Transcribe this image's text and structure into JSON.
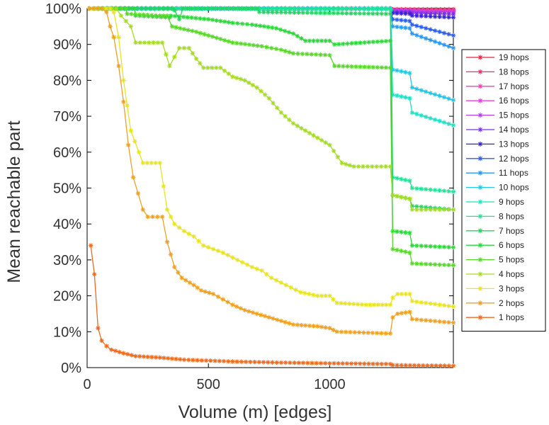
{
  "chart_data": {
    "type": "line",
    "title": "",
    "xlabel": "Volume (m) [edges]",
    "ylabel": "Mean reachable part",
    "xlim": [
      0,
      1510
    ],
    "ylim": [
      0,
      100
    ],
    "xticks": [
      0,
      500,
      1000
    ],
    "yticks": [
      0,
      10,
      20,
      30,
      40,
      50,
      60,
      70,
      80,
      90,
      100
    ],
    "xtick_labels": [
      "0",
      "500",
      "1000"
    ],
    "ytick_labels": [
      "0%",
      "10%",
      "20%",
      "30%",
      "40%",
      "50%",
      "60%",
      "70%",
      "80%",
      "90%",
      "100%"
    ],
    "legend_position": "right",
    "marker": "asterisk",
    "series": [
      {
        "name": "19 hops",
        "color": "#e8203c",
        "points": [
          [
            10,
            100
          ],
          [
            1250,
            100
          ],
          [
            1260,
            99.8
          ],
          [
            1510,
            99.8
          ]
        ]
      },
      {
        "name": "18 hops",
        "color": "#ee2e6a",
        "points": [
          [
            10,
            100
          ],
          [
            1250,
            100
          ],
          [
            1260,
            99.7
          ],
          [
            1510,
            99.6
          ]
        ]
      },
      {
        "name": "17 hops",
        "color": "#f041b4",
        "points": [
          [
            10,
            100
          ],
          [
            1250,
            100
          ],
          [
            1260,
            99.6
          ],
          [
            1510,
            99.4
          ]
        ]
      },
      {
        "name": "16 hops",
        "color": "#e43ee0",
        "points": [
          [
            10,
            100
          ],
          [
            1250,
            100
          ],
          [
            1260,
            99.5
          ],
          [
            1510,
            99.2
          ]
        ]
      },
      {
        "name": "15 hops",
        "color": "#b33ee6",
        "points": [
          [
            10,
            100
          ],
          [
            1250,
            100
          ],
          [
            1260,
            99.3
          ],
          [
            1510,
            99
          ]
        ]
      },
      {
        "name": "14 hops",
        "color": "#7a2ee6",
        "points": [
          [
            10,
            100
          ],
          [
            1250,
            100
          ],
          [
            1260,
            99
          ],
          [
            1330,
            99
          ],
          [
            1340,
            98.7
          ],
          [
            1510,
            98.4
          ]
        ]
      },
      {
        "name": "13 hops",
        "color": "#3622d8",
        "points": [
          [
            10,
            100
          ],
          [
            1250,
            100
          ],
          [
            1260,
            98.7
          ],
          [
            1330,
            98.5
          ],
          [
            1340,
            98
          ],
          [
            1510,
            97.5
          ]
        ]
      },
      {
        "name": "12 hops",
        "color": "#2a5cf0",
        "points": [
          [
            10,
            100
          ],
          [
            1250,
            100
          ],
          [
            1260,
            97
          ],
          [
            1330,
            96.5
          ],
          [
            1340,
            95.5
          ],
          [
            1510,
            92.5
          ]
        ]
      },
      {
        "name": "11 hops",
        "color": "#2a98f0",
        "points": [
          [
            10,
            100
          ],
          [
            1250,
            100
          ],
          [
            1260,
            95
          ],
          [
            1330,
            94.5
          ],
          [
            1340,
            93
          ],
          [
            1510,
            89
          ]
        ]
      },
      {
        "name": "10 hops",
        "color": "#22c6e6",
        "points": [
          [
            10,
            100
          ],
          [
            1250,
            100
          ],
          [
            1260,
            83
          ],
          [
            1330,
            82
          ],
          [
            1340,
            78
          ],
          [
            1510,
            74.5
          ]
        ]
      },
      {
        "name": "9 hops",
        "color": "#1ee0c4",
        "points": [
          [
            10,
            100
          ],
          [
            1250,
            100
          ],
          [
            1260,
            76
          ],
          [
            1330,
            75
          ],
          [
            1340,
            71
          ],
          [
            1510,
            67.5
          ]
        ]
      },
      {
        "name": "8 hops",
        "color": "#1ee494",
        "points": [
          [
            10,
            100
          ],
          [
            400,
            100
          ],
          [
            1250,
            99.8
          ],
          [
            1252,
            99.5
          ],
          [
            1260,
            53
          ],
          [
            1330,
            52
          ],
          [
            1340,
            50
          ],
          [
            1510,
            49
          ]
        ]
      },
      {
        "name": "7 hops",
        "color": "#22d460",
        "points": [
          [
            10,
            100
          ],
          [
            350,
            100
          ],
          [
            360,
            99.5
          ],
          [
            380,
            97
          ],
          [
            395,
            100
          ],
          [
            700,
            100
          ],
          [
            710,
            99
          ],
          [
            1250,
            98.5
          ],
          [
            1260,
            48
          ],
          [
            1330,
            47
          ],
          [
            1340,
            45
          ],
          [
            1510,
            44
          ]
        ]
      },
      {
        "name": "6 hops",
        "color": "#2ad838",
        "points": [
          [
            10,
            100
          ],
          [
            195,
            100
          ],
          [
            200,
            98
          ],
          [
            340,
            97.5
          ],
          [
            345,
            98
          ],
          [
            500,
            97
          ],
          [
            600,
            96
          ],
          [
            680,
            95.5
          ],
          [
            780,
            94.5
          ],
          [
            850,
            93
          ],
          [
            900,
            91
          ],
          [
            1000,
            91
          ],
          [
            1020,
            90
          ],
          [
            1250,
            91
          ],
          [
            1260,
            38
          ],
          [
            1330,
            37.5
          ],
          [
            1340,
            34
          ],
          [
            1510,
            33.5
          ]
        ]
      },
      {
        "name": "5 hops",
        "color": "#56d828",
        "points": [
          [
            10,
            100
          ],
          [
            160,
            100
          ],
          [
            165,
            98.5
          ],
          [
            300,
            98
          ],
          [
            330,
            98
          ],
          [
            350,
            95
          ],
          [
            450,
            93.5
          ],
          [
            500,
            92.5
          ],
          [
            600,
            90.5
          ],
          [
            720,
            89.5
          ],
          [
            800,
            88.5
          ],
          [
            850,
            87.5
          ],
          [
            1000,
            87
          ],
          [
            1020,
            84
          ],
          [
            1250,
            83.5
          ],
          [
            1260,
            33
          ],
          [
            1330,
            32
          ],
          [
            1340,
            29
          ],
          [
            1510,
            28.5
          ]
        ]
      },
      {
        "name": "4 hops",
        "color": "#a4dc22",
        "points": [
          [
            10,
            100
          ],
          [
            120,
            100
          ],
          [
            140,
            98
          ],
          [
            180,
            95
          ],
          [
            200,
            90.5
          ],
          [
            310,
            90.5
          ],
          [
            340,
            84
          ],
          [
            380,
            89
          ],
          [
            420,
            89
          ],
          [
            450,
            86
          ],
          [
            480,
            83.5
          ],
          [
            550,
            83.5
          ],
          [
            600,
            81
          ],
          [
            650,
            80
          ],
          [
            700,
            78
          ],
          [
            750,
            75
          ],
          [
            800,
            71
          ],
          [
            850,
            68
          ],
          [
            900,
            66
          ],
          [
            950,
            64
          ],
          [
            1000,
            62
          ],
          [
            1050,
            57
          ],
          [
            1100,
            56
          ],
          [
            1250,
            56
          ],
          [
            1260,
            48
          ],
          [
            1330,
            47
          ],
          [
            1340,
            44
          ],
          [
            1510,
            44
          ]
        ]
      },
      {
        "name": "3 hops",
        "color": "#e8e41e",
        "points": [
          [
            10,
            100
          ],
          [
            95,
            100
          ],
          [
            110,
            99
          ],
          [
            130,
            92
          ],
          [
            150,
            80
          ],
          [
            180,
            66
          ],
          [
            230,
            57
          ],
          [
            300,
            57
          ],
          [
            330,
            44
          ],
          [
            360,
            40
          ],
          [
            400,
            38
          ],
          [
            440,
            36.5
          ],
          [
            480,
            34
          ],
          [
            560,
            32
          ],
          [
            620,
            30
          ],
          [
            680,
            28
          ],
          [
            720,
            27
          ],
          [
            760,
            25
          ],
          [
            820,
            23
          ],
          [
            880,
            21
          ],
          [
            950,
            20
          ],
          [
            1000,
            20
          ],
          [
            1030,
            18
          ],
          [
            1150,
            17.5
          ],
          [
            1250,
            17.5
          ],
          [
            1260,
            19.5
          ],
          [
            1280,
            20.5
          ],
          [
            1330,
            20.5
          ],
          [
            1340,
            18.5
          ],
          [
            1510,
            17
          ]
        ]
      },
      {
        "name": "2 hops",
        "color": "#f0a020",
        "points": [
          [
            10,
            100
          ],
          [
            60,
            100
          ],
          [
            80,
            99
          ],
          [
            95,
            95
          ],
          [
            110,
            92
          ],
          [
            130,
            84
          ],
          [
            150,
            74
          ],
          [
            170,
            62
          ],
          [
            190,
            53
          ],
          [
            230,
            44
          ],
          [
            250,
            42
          ],
          [
            310,
            42
          ],
          [
            330,
            35
          ],
          [
            360,
            28
          ],
          [
            390,
            25
          ],
          [
            440,
            23
          ],
          [
            470,
            21.5
          ],
          [
            520,
            20.5
          ],
          [
            560,
            19
          ],
          [
            600,
            17.5
          ],
          [
            650,
            16
          ],
          [
            700,
            15
          ],
          [
            750,
            14
          ],
          [
            800,
            13
          ],
          [
            850,
            12
          ],
          [
            950,
            11.5
          ],
          [
            1000,
            11
          ],
          [
            1030,
            10
          ],
          [
            1250,
            9.5
          ],
          [
            1260,
            14
          ],
          [
            1280,
            15
          ],
          [
            1330,
            15.5
          ],
          [
            1340,
            13.5
          ],
          [
            1510,
            12.5
          ]
        ]
      },
      {
        "name": "1 hops",
        "color": "#ee6a1e",
        "points": [
          [
            15,
            34
          ],
          [
            30,
            26
          ],
          [
            45,
            11
          ],
          [
            60,
            7.5
          ],
          [
            80,
            6
          ],
          [
            100,
            5
          ],
          [
            150,
            4
          ],
          [
            200,
            3.2
          ],
          [
            300,
            2.8
          ],
          [
            400,
            2.2
          ],
          [
            600,
            1.7
          ],
          [
            800,
            1.4
          ],
          [
            1000,
            1.2
          ],
          [
            1250,
            1
          ],
          [
            1260,
            0.7
          ],
          [
            1510,
            0.5
          ]
        ]
      }
    ]
  }
}
